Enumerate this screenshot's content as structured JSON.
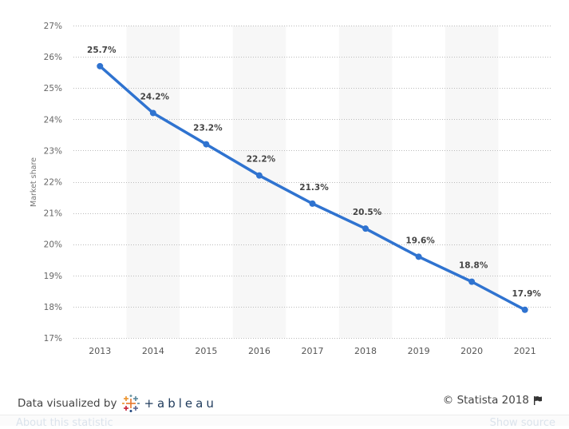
{
  "chart_data": {
    "type": "line",
    "title": "",
    "xlabel": "",
    "ylabel": "Market share",
    "categories": [
      "2013",
      "2014",
      "2015",
      "2016",
      "2017",
      "2018",
      "2019",
      "2020",
      "2021"
    ],
    "series": [
      {
        "name": "Market share",
        "values": [
          25.7,
          24.2,
          23.2,
          22.2,
          21.3,
          20.5,
          19.6,
          18.8,
          17.9
        ],
        "labels": [
          "25.7%",
          "24.2%",
          "23.2%",
          "22.2%",
          "21.3%",
          "20.5%",
          "19.6%",
          "18.8%",
          "17.9%"
        ],
        "color": "#2f73d0"
      }
    ],
    "ylim": [
      17,
      27
    ],
    "yticks": [
      17,
      18,
      19,
      20,
      21,
      22,
      23,
      24,
      25,
      26,
      27
    ],
    "ytick_labels": [
      "17%",
      "18%",
      "19%",
      "20%",
      "21%",
      "22%",
      "23%",
      "24%",
      "25%",
      "26%",
      "27%"
    ],
    "grid": true,
    "alternating_band_color": "#f7f7f7",
    "legend": "none"
  },
  "footer": {
    "credit_text": "Data visualized by",
    "tableau_word": "+ableau",
    "copyright": "© Statista 2018",
    "about_link": "About this statistic",
    "source_link": "Show source"
  }
}
